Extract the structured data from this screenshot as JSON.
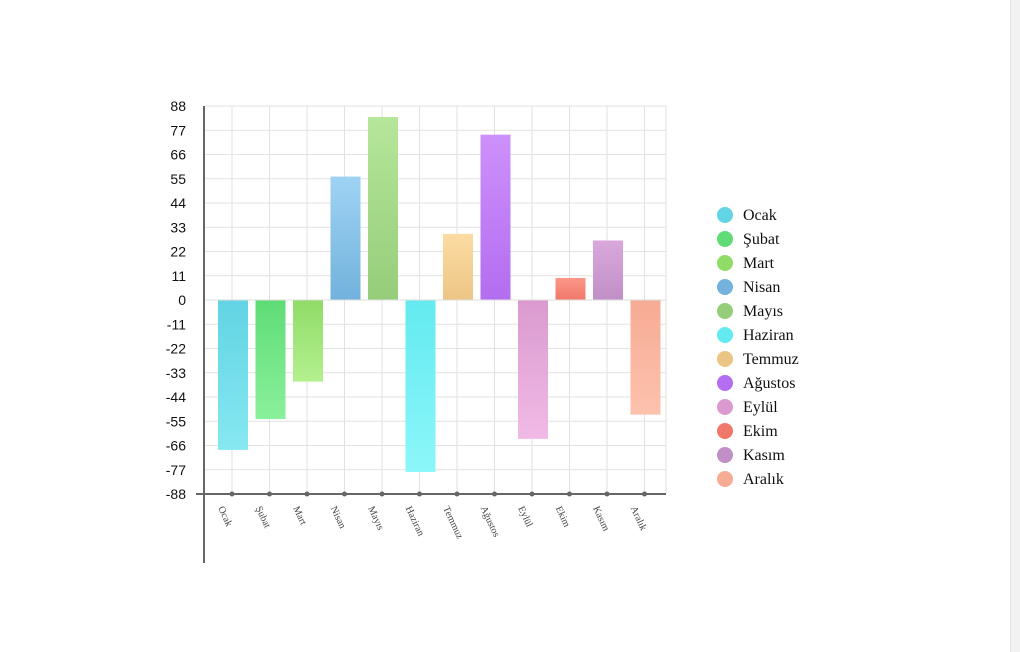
{
  "chart_data": {
    "type": "bar",
    "categories": [
      "Ocak",
      "Şubat",
      "Mart",
      "Nisan",
      "Mayıs",
      "Haziran",
      "Temmuz",
      "Ağustos",
      "Eylül",
      "Ekim",
      "Kasım",
      "Aralık"
    ],
    "series": [
      {
        "values": [
          -68,
          -54,
          -37,
          56,
          83,
          -78,
          30,
          75,
          -63,
          10,
          27,
          -52
        ]
      }
    ],
    "colors": [
      [
        "#62d4e3",
        "#86e8f1"
      ],
      [
        "#5fdc76",
        "#8af09b"
      ],
      [
        "#90dc67",
        "#b3f08f"
      ],
      [
        "#72b2dc",
        "#9fd3f4"
      ],
      [
        "#95cd7a",
        "#b6e69a"
      ],
      [
        "#63eaf0",
        "#8cf7fa"
      ],
      [
        "#ecc585",
        "#fcdca3"
      ],
      [
        "#b36df0",
        "#cd91fa"
      ],
      [
        "#da9acf",
        "#f1bae6"
      ],
      [
        "#f0786b",
        "#fb9888"
      ],
      [
        "#c08fc6",
        "#d9a8dc"
      ],
      [
        "#f6ab94",
        "#fdc2ae"
      ]
    ],
    "yticks": [
      "88",
      "77",
      "66",
      "55",
      "44",
      "33",
      "22",
      "11",
      "0",
      "-11",
      "-22",
      "-33",
      "-44",
      "-55",
      "-66",
      "-77",
      "-88"
    ],
    "ylim": [
      -88,
      88
    ],
    "grid": true,
    "legend_position": "right",
    "title": "",
    "xlabel": "",
    "ylabel": ""
  }
}
